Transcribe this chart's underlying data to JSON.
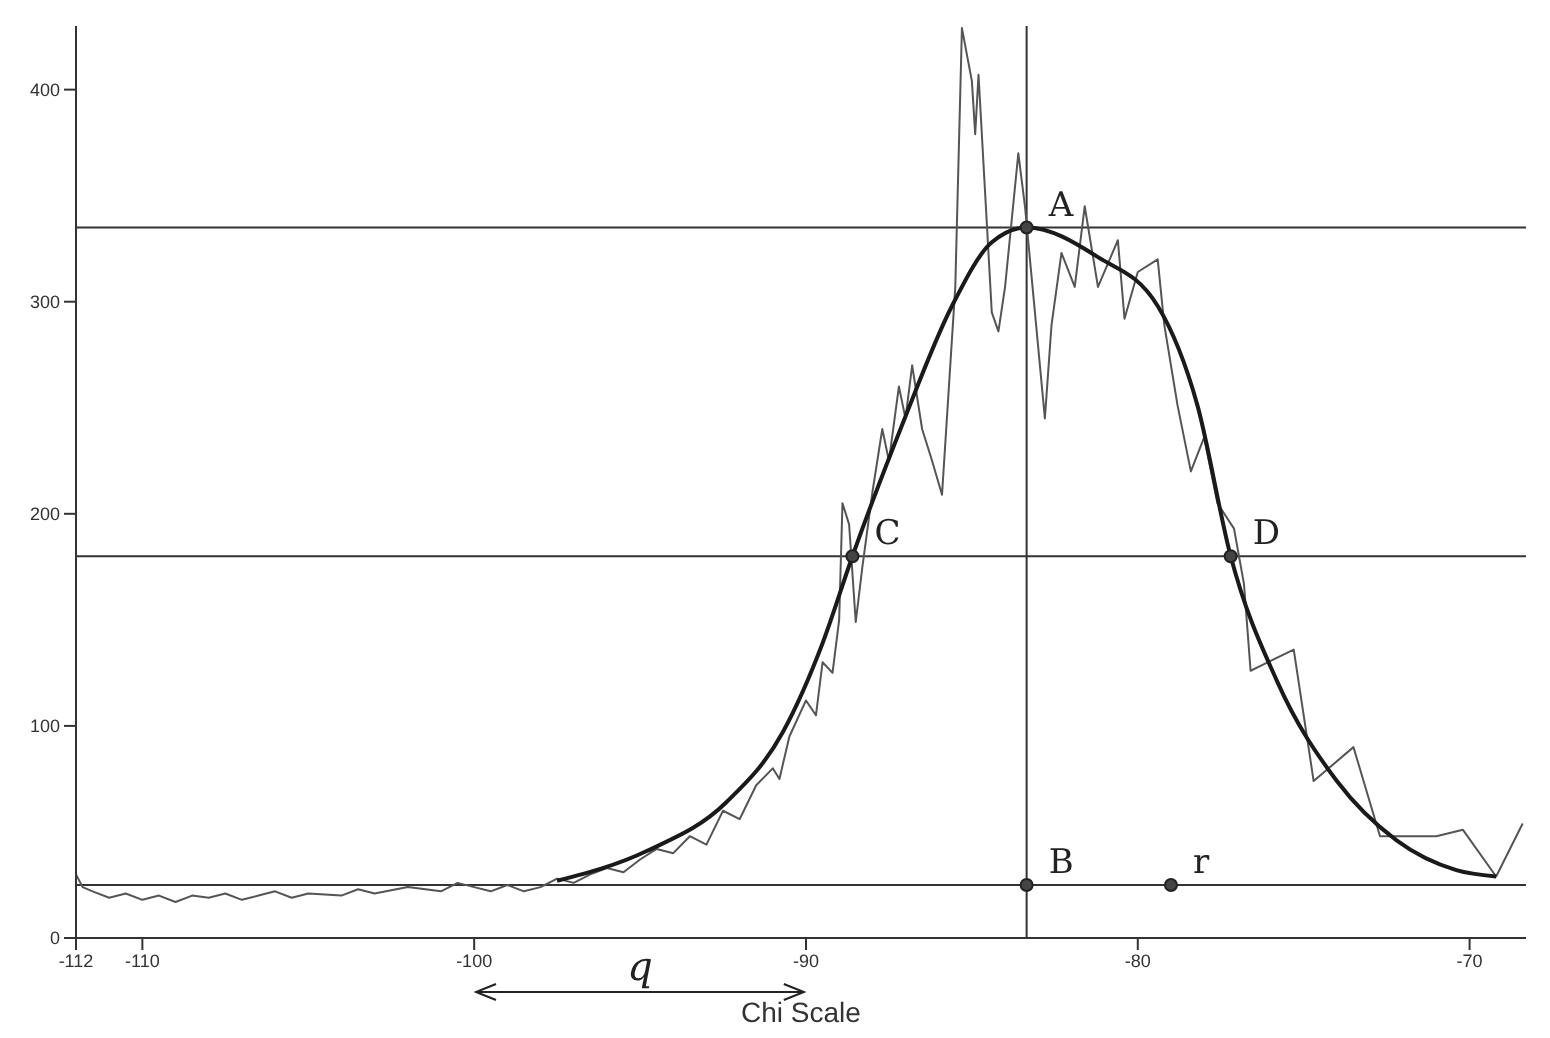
{
  "chart_data": {
    "type": "line",
    "xlabel": "Chi Scale",
    "xlim": [
      -112,
      -68.3
    ],
    "xticks": [
      -112,
      -110,
      -100,
      -90,
      -80,
      -70
    ],
    "ylim": [
      0,
      430
    ],
    "yticks": [
      0,
      100,
      200,
      300,
      400
    ],
    "marker": "none",
    "line_style": "solid",
    "series": [
      {
        "color": "#555555",
        "x": [
          -112,
          -111.8,
          -111.5,
          -111,
          -110.5,
          -110,
          -109.5,
          -109,
          -108.5,
          -108,
          -107.5,
          -107,
          -106.5,
          -106,
          -105.5,
          -105,
          -104,
          -103.5,
          -103,
          -102,
          -101,
          -100.5,
          -100,
          -99.5,
          -99,
          -98.5,
          -98,
          -97.5,
          -97,
          -96.5,
          -96,
          -95.5,
          -95,
          -94.5,
          -94,
          -93.5,
          -93,
          -92.5,
          -92,
          -91.5,
          -91,
          -90.8,
          -90.5,
          -90,
          -89.7,
          -89.5,
          -89.2,
          -89,
          -88.9,
          -88.7,
          -88.5,
          -88.3,
          -88,
          -87.7,
          -87.5,
          -87.2,
          -87,
          -86.8,
          -86.5,
          -86.2,
          -85.9,
          -85.5,
          -85.3,
          -85,
          -84.9,
          -84.8,
          -84.4,
          -84.2,
          -84,
          -83.6,
          -83.4,
          -82.8,
          -82.6,
          -82.3,
          -81.9,
          -81.6,
          -81.2,
          -80.6,
          -80.4,
          -80,
          -79.4,
          -79.2,
          -78.8,
          -78.4,
          -78,
          -77.6,
          -77.1,
          -76.8,
          -76.6,
          -75.3,
          -74.7,
          -73.5,
          -72.7,
          -71,
          -70.2,
          -69.2,
          -68.4
        ],
        "values": [
          30,
          24,
          22,
          19,
          21,
          18,
          20,
          17,
          20,
          19,
          21,
          18,
          20,
          22,
          19,
          21,
          20,
          23,
          21,
          24,
          22,
          26,
          24,
          22,
          25,
          22,
          24,
          28,
          26,
          30,
          33,
          31,
          37,
          42,
          40,
          48,
          44,
          60,
          56,
          72,
          80,
          75,
          95,
          112,
          105,
          130,
          125,
          150,
          205,
          195,
          149,
          175,
          210,
          240,
          225,
          260,
          245,
          270,
          240,
          225,
          209,
          307,
          429,
          404,
          379,
          407,
          295,
          286,
          307,
          370,
          345,
          245,
          289,
          323,
          307,
          345,
          307,
          329,
          292,
          314,
          320,
          289,
          251,
          220,
          236,
          205,
          193,
          167,
          126,
          136,
          74,
          90,
          48,
          48,
          51,
          29,
          54
        ]
      },
      {
        "color": "#1a1a1a",
        "x": [
          -97.5,
          -94.8,
          -92.4,
          -90.7,
          -89.5,
          -88.6,
          -87.1,
          -85.6,
          -84.4,
          -83.35,
          -81.2,
          -79.4,
          -78.2,
          -77.2,
          -75.8,
          -74,
          -72.2,
          -70.4,
          -69.2
        ],
        "values": [
          27,
          41,
          64,
          97,
          139,
          180,
          242,
          298,
          328,
          335,
          321,
          298,
          251,
          180,
          121,
          74,
          46,
          32,
          29
        ]
      }
    ],
    "ref_lines": [
      {
        "axis": "x",
        "value": -83.35
      },
      {
        "axis": "y",
        "value": 25
      },
      {
        "axis": "y",
        "value": 180
      },
      {
        "axis": "y",
        "value": 335
      }
    ],
    "annotations": [
      {
        "text": "A",
        "x": -83.35,
        "y": 335
      },
      {
        "text": "B",
        "x": -83.35,
        "y": 25
      },
      {
        "text": "C",
        "x": -88.6,
        "y": 180
      },
      {
        "text": "D",
        "x": -77.2,
        "y": 180
      },
      {
        "text": "r",
        "x": -79,
        "y": 25
      },
      "q"
    ]
  }
}
